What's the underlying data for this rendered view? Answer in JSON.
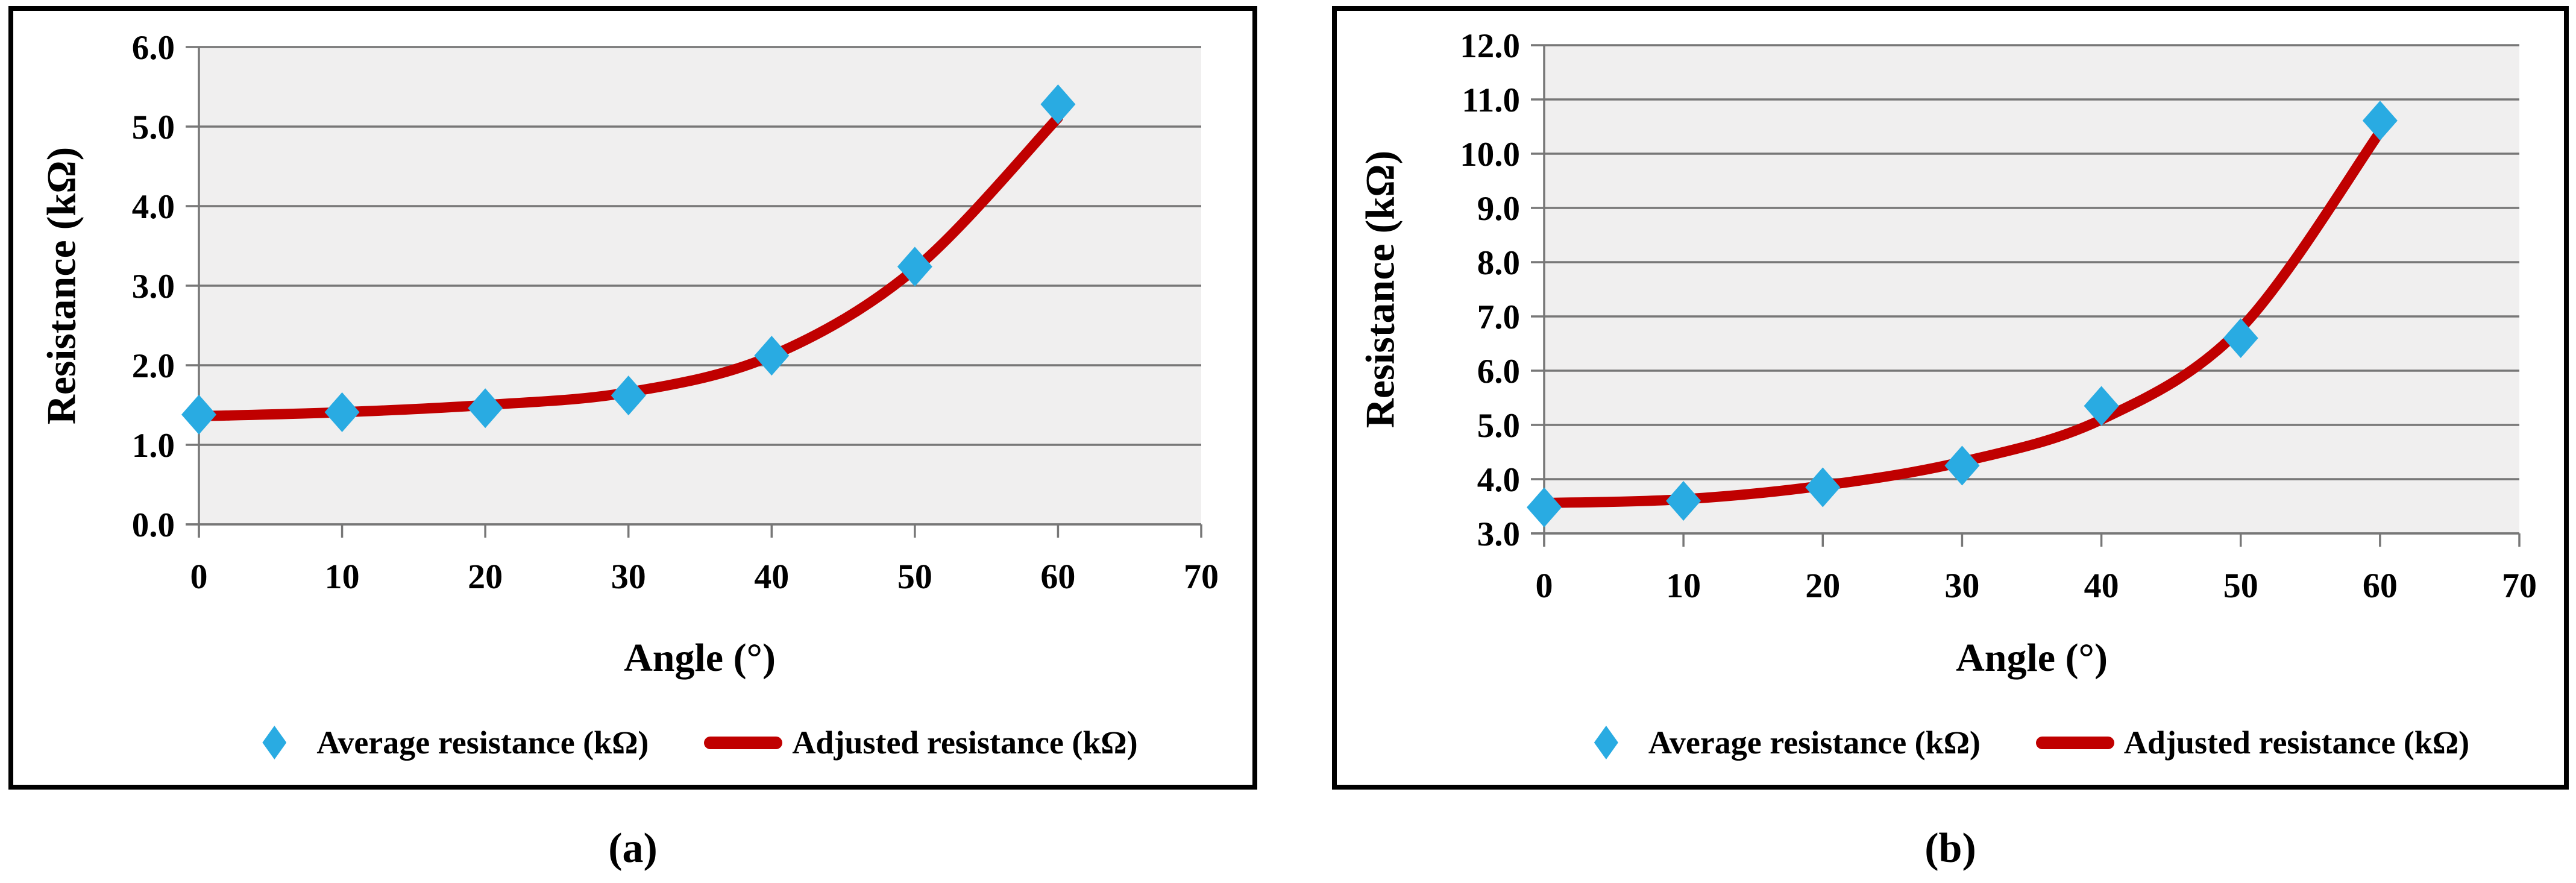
{
  "panels": [
    {
      "caption": "(a)",
      "y_axis": {
        "title": "Resistance (kΩ)",
        "tick_labels": [
          "0.0",
          "1.0",
          "2.0",
          "3.0",
          "4.0",
          "5.0",
          "6.0"
        ]
      },
      "x_axis": {
        "title": "Angle (°)",
        "tick_labels": [
          "0",
          "10",
          "20",
          "30",
          "40",
          "50",
          "60",
          "70"
        ]
      },
      "legend": {
        "scatter_label": "Average resistance (kΩ)",
        "line_label": "Adjusted resistance (kΩ)"
      }
    },
    {
      "caption": "(b)",
      "y_axis": {
        "title": "Resistance (kΩ)",
        "tick_labels": [
          "3.0",
          "4.0",
          "5.0",
          "6.0",
          "7.0",
          "8.0",
          "9.0",
          "10.0",
          "11.0",
          "12.0"
        ]
      },
      "x_axis": {
        "title": "Angle (°)",
        "tick_labels": [
          "0",
          "10",
          "20",
          "30",
          "40",
          "50",
          "60",
          "70"
        ]
      },
      "legend": {
        "scatter_label": "Average resistance (kΩ)",
        "line_label": "Adjusted resistance (kΩ)"
      }
    }
  ],
  "colors": {
    "scatter": "#29ABE2",
    "curve": "#C00000",
    "grid": "#777777",
    "plot_bg": "#F0EFEF",
    "text": "#000000",
    "panel_border": "#000000"
  },
  "chart_data": [
    {
      "type": "scatter",
      "title": "",
      "xlabel": "Angle (°)",
      "ylabel": "Resistance (kΩ)",
      "x": [
        0,
        10,
        20,
        30,
        40,
        50,
        60
      ],
      "xlim": [
        0,
        70
      ],
      "xtick_step": 10,
      "ylim": [
        0,
        6
      ],
      "ytick_step": 1.0,
      "grid": true,
      "legend_position": "bottom",
      "series": [
        {
          "name": "Average resistance (kΩ)",
          "style": "points",
          "marker": "diamond",
          "color": "#29ABE2",
          "values": [
            1.38,
            1.41,
            1.46,
            1.62,
            2.12,
            3.24,
            5.28
          ]
        },
        {
          "name": "Adjusted resistance (kΩ)",
          "style": "smooth-line",
          "color": "#C00000",
          "values": [
            1.36,
            1.41,
            1.5,
            1.66,
            2.12,
            3.21,
            5.11
          ]
        }
      ]
    },
    {
      "type": "scatter",
      "title": "",
      "xlabel": "Angle (°)",
      "ylabel": "Resistance (kΩ)",
      "x": [
        0,
        10,
        20,
        30,
        40,
        50,
        60
      ],
      "xlim": [
        0,
        70
      ],
      "xtick_step": 10,
      "ylim": [
        3,
        12
      ],
      "ytick_step": 1.0,
      "grid": true,
      "legend_position": "bottom",
      "series": [
        {
          "name": "Average resistance (kΩ)",
          "style": "points",
          "marker": "diamond",
          "color": "#29ABE2",
          "values": [
            3.48,
            3.6,
            3.85,
            4.25,
            5.35,
            6.6,
            10.61
          ]
        },
        {
          "name": "Adjusted resistance (kΩ)",
          "style": "smooth-line",
          "color": "#C00000",
          "values": [
            3.56,
            3.63,
            3.88,
            4.32,
            5.1,
            6.78,
            10.4
          ]
        }
      ]
    }
  ]
}
